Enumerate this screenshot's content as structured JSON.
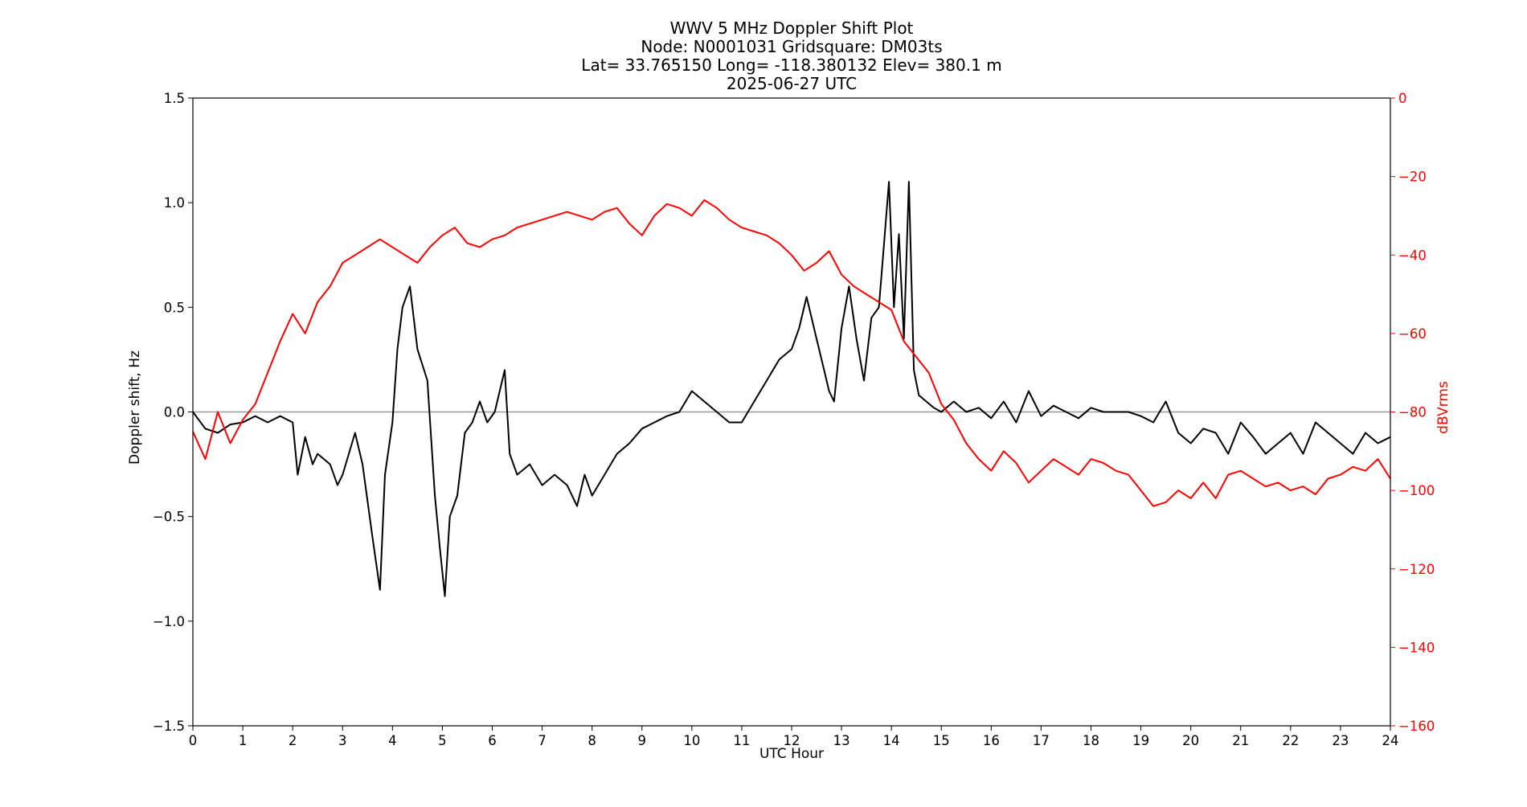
{
  "chart_data": {
    "type": "line",
    "title_lines": [
      "WWV 5 MHz Doppler Shift Plot",
      "Node:  N0001031     Gridsquare:  DM03ts",
      "Lat= 33.765150    Long= -118.380132    Elev= 380.1 m",
      "2025-06-27  UTC"
    ],
    "xlabel": "UTC Hour",
    "ylabel_left": "Doppler shift, Hz",
    "ylabel_right": "dBVrms",
    "xlim": [
      0,
      24
    ],
    "ylim_left": [
      -1.5,
      1.5
    ],
    "ylim_right": [
      -160,
      0
    ],
    "x_ticks": [
      0,
      1,
      2,
      3,
      4,
      5,
      6,
      7,
      8,
      9,
      10,
      11,
      12,
      13,
      14,
      15,
      16,
      17,
      18,
      19,
      20,
      21,
      22,
      23,
      24
    ],
    "y_ticks_left": [
      "1.5",
      "1.0",
      "0.5",
      "0.0",
      "−0.5",
      "−1.0",
      "−1.5"
    ],
    "y_ticks_right": [
      "0",
      "−20",
      "−40",
      "−60",
      "−80",
      "−100",
      "−120",
      "−140",
      "−160"
    ],
    "zero_line": 0,
    "grid": false,
    "colors": {
      "doppler": "#000000",
      "power": "#ff0000",
      "zero_line": "#999999"
    },
    "series": [
      {
        "axis": "left",
        "x": [
          0,
          0.25,
          0.5,
          0.75,
          1.0,
          1.25,
          1.5,
          1.75,
          2.0,
          2.1,
          2.25,
          2.4,
          2.5,
          2.75,
          2.9,
          3.0,
          3.25,
          3.4,
          3.6,
          3.75,
          3.85,
          4.0,
          4.1,
          4.2,
          4.35,
          4.5,
          4.7,
          4.85,
          4.95,
          5.05,
          5.15,
          5.3,
          5.45,
          5.6,
          5.75,
          5.9,
          6.05,
          6.15,
          6.25,
          6.35,
          6.5,
          6.75,
          7.0,
          7.25,
          7.5,
          7.7,
          7.85,
          8.0,
          8.25,
          8.5,
          8.75,
          9.0,
          9.25,
          9.5,
          9.75,
          10.0,
          10.25,
          10.5,
          10.75,
          11.0,
          11.25,
          11.5,
          11.75,
          12.0,
          12.15,
          12.3,
          12.5,
          12.65,
          12.75,
          12.85,
          13.0,
          13.15,
          13.3,
          13.45,
          13.6,
          13.75,
          13.85,
          13.95,
          14.05,
          14.15,
          14.25,
          14.35,
          14.45,
          14.55,
          14.7,
          14.85,
          15.0,
          15.25,
          15.5,
          15.75,
          16.0,
          16.25,
          16.5,
          16.75,
          17.0,
          17.25,
          17.5,
          17.75,
          18.0,
          18.25,
          18.5,
          18.75,
          19.0,
          19.25,
          19.5,
          19.75,
          20.0,
          20.25,
          20.5,
          20.75,
          21.0,
          21.25,
          21.5,
          21.75,
          22.0,
          22.25,
          22.5,
          22.75,
          23.0,
          23.25,
          23.5,
          23.75,
          24.0
        ],
        "y": [
          0.0,
          -0.08,
          -0.1,
          -0.06,
          -0.05,
          -0.02,
          -0.05,
          -0.02,
          -0.05,
          -0.3,
          -0.12,
          -0.25,
          -0.2,
          -0.25,
          -0.35,
          -0.3,
          -0.1,
          -0.25,
          -0.6,
          -0.85,
          -0.3,
          -0.05,
          0.3,
          0.5,
          0.6,
          0.3,
          0.15,
          -0.4,
          -0.65,
          -0.88,
          -0.5,
          -0.4,
          -0.1,
          -0.05,
          0.05,
          -0.05,
          0.0,
          0.1,
          0.2,
          -0.2,
          -0.3,
          -0.25,
          -0.35,
          -0.3,
          -0.35,
          -0.45,
          -0.3,
          -0.4,
          -0.3,
          -0.2,
          -0.15,
          -0.08,
          -0.05,
          -0.02,
          0.0,
          0.1,
          0.05,
          0.0,
          -0.05,
          -0.05,
          0.05,
          0.15,
          0.25,
          0.3,
          0.4,
          0.55,
          0.35,
          0.2,
          0.1,
          0.05,
          0.4,
          0.6,
          0.35,
          0.15,
          0.45,
          0.5,
          0.8,
          1.1,
          0.5,
          0.85,
          0.35,
          1.1,
          0.2,
          0.08,
          0.05,
          0.02,
          0.0,
          0.05,
          0.0,
          0.02,
          -0.03,
          0.05,
          -0.05,
          0.1,
          -0.02,
          0.03,
          0.0,
          -0.03,
          0.02,
          0.0,
          0.0,
          0.0,
          -0.02,
          -0.05,
          0.05,
          -0.1,
          -0.15,
          -0.08,
          -0.1,
          -0.2,
          -0.05,
          -0.12,
          -0.2,
          -0.15,
          -0.1,
          -0.2,
          -0.05,
          -0.1,
          -0.15,
          -0.2,
          -0.1,
          -0.15,
          -0.12
        ]
      },
      {
        "axis": "right",
        "x": [
          0,
          0.25,
          0.5,
          0.75,
          1.0,
          1.25,
          1.5,
          1.75,
          2.0,
          2.25,
          2.5,
          2.75,
          3.0,
          3.25,
          3.5,
          3.75,
          4.0,
          4.25,
          4.5,
          4.75,
          5.0,
          5.25,
          5.5,
          5.75,
          6.0,
          6.25,
          6.5,
          6.75,
          7.0,
          7.25,
          7.5,
          7.75,
          8.0,
          8.25,
          8.5,
          8.75,
          9.0,
          9.25,
          9.5,
          9.75,
          10.0,
          10.25,
          10.5,
          10.75,
          11.0,
          11.25,
          11.5,
          11.75,
          12.0,
          12.25,
          12.5,
          12.75,
          13.0,
          13.25,
          13.5,
          13.75,
          14.0,
          14.25,
          14.5,
          14.75,
          15.0,
          15.25,
          15.5,
          15.75,
          16.0,
          16.25,
          16.5,
          16.75,
          17.0,
          17.25,
          17.5,
          17.75,
          18.0,
          18.25,
          18.5,
          18.75,
          19.0,
          19.25,
          19.5,
          19.75,
          20.0,
          20.25,
          20.5,
          20.75,
          21.0,
          21.25,
          21.5,
          21.75,
          22.0,
          22.25,
          22.5,
          22.75,
          23.0,
          23.25,
          23.5,
          23.75,
          24.0
        ],
        "y": [
          -85,
          -92,
          -80,
          -88,
          -82,
          -78,
          -70,
          -62,
          -55,
          -60,
          -52,
          -48,
          -42,
          -40,
          -38,
          -36,
          -38,
          -40,
          -42,
          -38,
          -35,
          -33,
          -37,
          -38,
          -36,
          -35,
          -33,
          -32,
          -31,
          -30,
          -29,
          -30,
          -31,
          -29,
          -28,
          -32,
          -35,
          -30,
          -27,
          -28,
          -30,
          -26,
          -28,
          -31,
          -33,
          -34,
          -35,
          -37,
          -40,
          -44,
          -42,
          -39,
          -45,
          -48,
          -50,
          -52,
          -54,
          -62,
          -66,
          -70,
          -78,
          -82,
          -88,
          -92,
          -95,
          -90,
          -93,
          -98,
          -95,
          -92,
          -94,
          -96,
          -92,
          -93,
          -95,
          -96,
          -100,
          -104,
          -103,
          -100,
          -102,
          -98,
          -102,
          -96,
          -95,
          -97,
          -99,
          -98,
          -100,
          -99,
          -101,
          -97,
          -96,
          -94,
          -95,
          -92,
          -97
        ]
      }
    ]
  }
}
